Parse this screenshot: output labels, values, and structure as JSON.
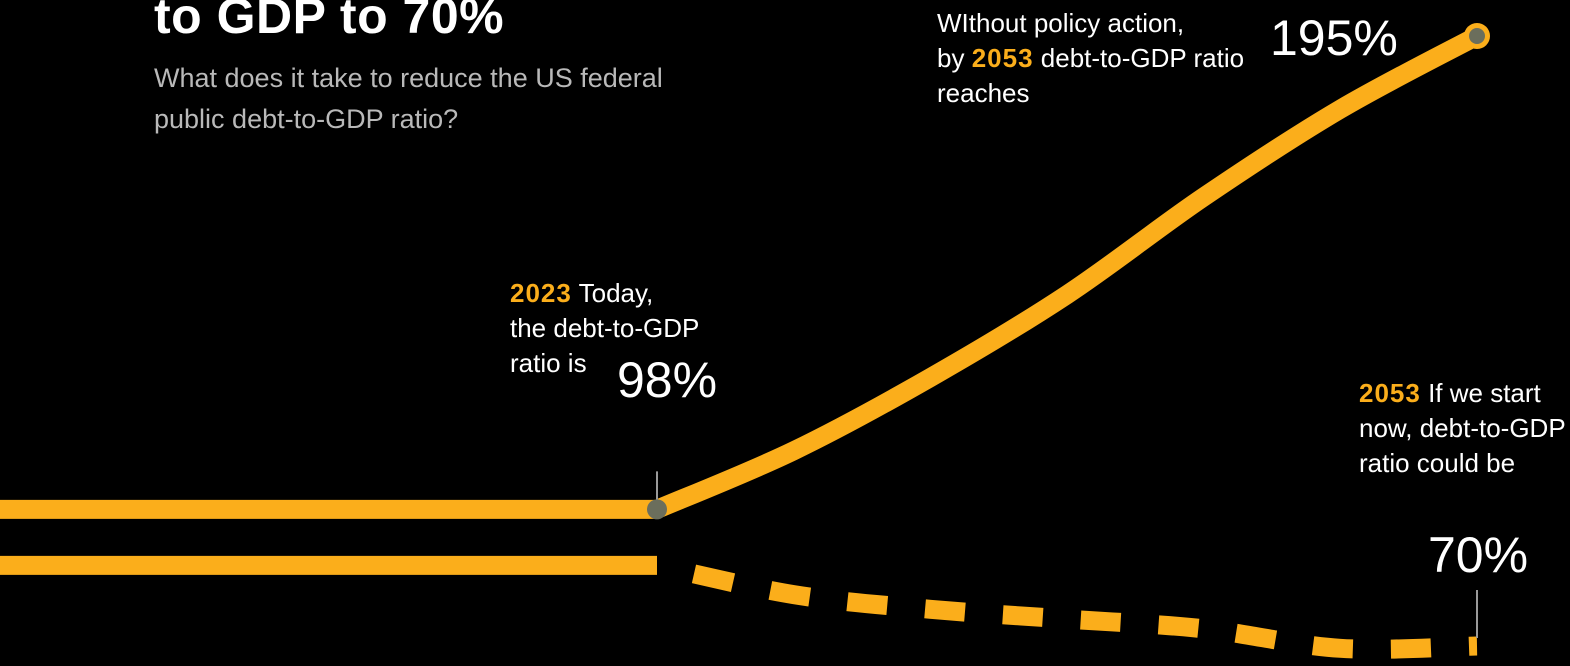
{
  "header": {
    "title": "to GDP to 70%",
    "subtitle": "What does it take to reduce the US federal public debt-to-GDP ratio?"
  },
  "annotations": {
    "no_action": {
      "prefix": "WIthout policy action,",
      "by": "by",
      "year": "2053",
      "suffix": "debt-to-GDP ratio reaches",
      "value": "195%"
    },
    "today": {
      "year": "2023",
      "text1": "Today,",
      "text2": "the debt-to-GDP",
      "text3": "ratio is",
      "value": "98%"
    },
    "with_action": {
      "year": "2053",
      "text": "If we start now, debt-to-GDP ratio could be",
      "value": "70%"
    }
  },
  "colors": {
    "background": "#000000",
    "line": "#fbae1b",
    "marker": "#6b6e5c",
    "text": "#ffffff",
    "subtitle": "#b9b9b9"
  },
  "chart_data": {
    "type": "line",
    "x_unit": "year",
    "y_unit": "debt-to-GDP %",
    "series": [
      {
        "style": "solid",
        "points": [
          [
            2023,
            98
          ],
          [
            2028,
            110
          ],
          [
            2033,
            125
          ],
          [
            2038,
            142
          ],
          [
            2043,
            162
          ],
          [
            2048,
            180
          ],
          [
            2053,
            195
          ]
        ]
      },
      {
        "style": "dashed",
        "points": [
          [
            2023,
            98
          ],
          [
            2028,
            92
          ],
          [
            2033,
            89
          ],
          [
            2038,
            87
          ],
          [
            2043,
            85
          ],
          [
            2048,
            81
          ],
          [
            2053,
            70
          ]
        ]
      }
    ],
    "markers": [
      {
        "x": 2023,
        "y": 98,
        "label": "98%"
      },
      {
        "x": 2053,
        "y": 195,
        "label": "195%"
      },
      {
        "x": 2053,
        "y": 70,
        "label": "70%"
      }
    ]
  }
}
